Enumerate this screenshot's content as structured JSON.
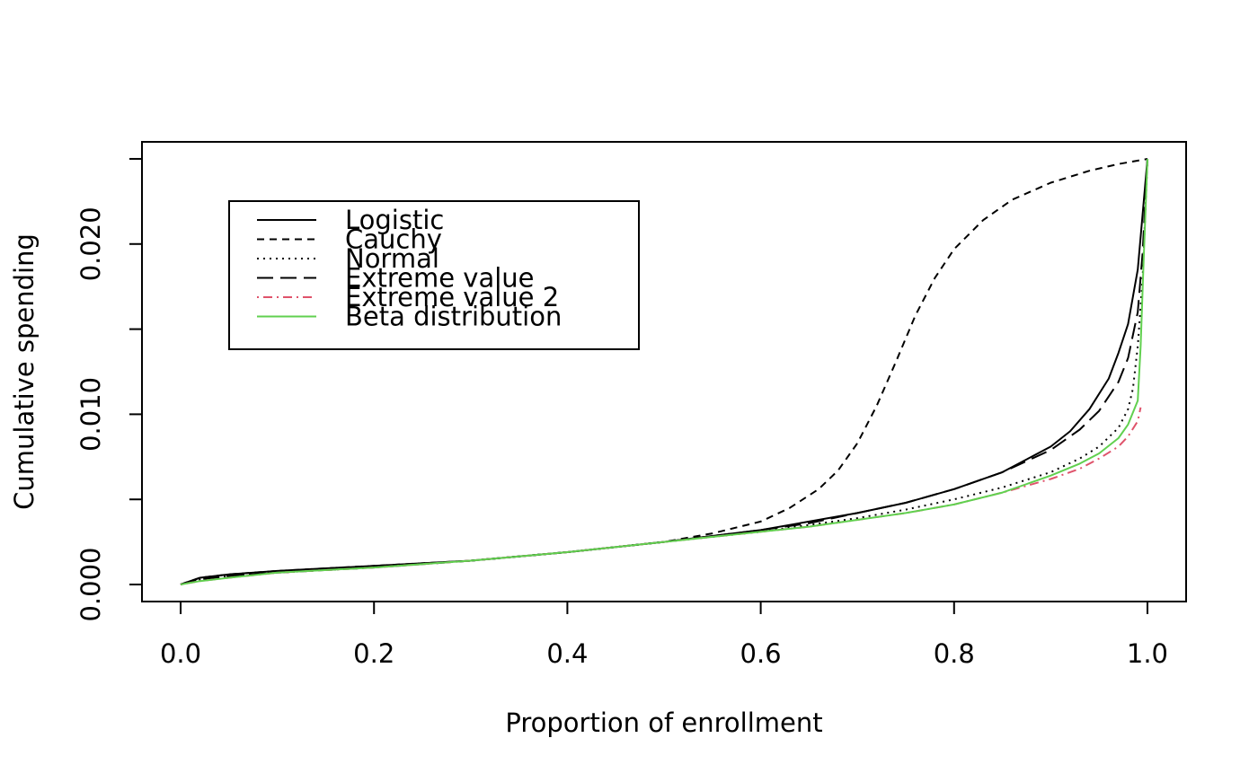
{
  "chart_data": {
    "type": "line",
    "title": "",
    "xlabel": "Proportion of enrollment",
    "ylabel": "Cumulative spending",
    "xlim": [
      -0.04,
      1.04
    ],
    "ylim": [
      -0.001,
      0.026
    ],
    "x_ticks": [
      0.0,
      0.2,
      0.4,
      0.6,
      0.8,
      1.0
    ],
    "x_tick_labels": [
      "0.0",
      "0.2",
      "0.4",
      "0.6",
      "0.8",
      "1.0"
    ],
    "y_ticks": [
      0.0,
      0.005,
      0.01,
      0.015,
      0.02,
      0.025
    ],
    "y_tick_labels": [
      "0.000",
      "",
      "0.010",
      "",
      "0.020",
      ""
    ],
    "grid": false,
    "legend_position": "top-left",
    "series": [
      {
        "name": "Logistic",
        "color": "#000000",
        "dash": "solid",
        "x": [
          0,
          0.02,
          0.05,
          0.1,
          0.2,
          0.3,
          0.4,
          0.5,
          0.6,
          0.65,
          0.7,
          0.75,
          0.8,
          0.85,
          0.9,
          0.92,
          0.94,
          0.96,
          0.97,
          0.98,
          0.99,
          1.0
        ],
        "y": [
          0,
          0.0004,
          0.0006,
          0.0008,
          0.0011,
          0.0014,
          0.0019,
          0.0025,
          0.0032,
          0.0037,
          0.0042,
          0.0048,
          0.0056,
          0.0066,
          0.0081,
          0.009,
          0.0103,
          0.0121,
          0.0136,
          0.0153,
          0.0185,
          0.025
        ]
      },
      {
        "name": "Cauchy",
        "color": "#000000",
        "dash": "short",
        "x": [
          0,
          0.02,
          0.05,
          0.1,
          0.2,
          0.3,
          0.4,
          0.5,
          0.55,
          0.6,
          0.63,
          0.66,
          0.68,
          0.7,
          0.72,
          0.74,
          0.76,
          0.78,
          0.8,
          0.83,
          0.86,
          0.9,
          0.94,
          0.97,
          1.0
        ],
        "y": [
          0,
          0.0004,
          0.0006,
          0.0008,
          0.0011,
          0.0014,
          0.0019,
          0.0025,
          0.003,
          0.0037,
          0.0045,
          0.0056,
          0.0067,
          0.0083,
          0.0105,
          0.0131,
          0.0158,
          0.018,
          0.0197,
          0.0214,
          0.0226,
          0.0236,
          0.0243,
          0.0247,
          0.025
        ]
      },
      {
        "name": "Normal",
        "color": "#000000",
        "dash": "dot",
        "x": [
          0,
          0.02,
          0.05,
          0.1,
          0.2,
          0.3,
          0.4,
          0.5,
          0.6,
          0.65,
          0.7,
          0.75,
          0.8,
          0.85,
          0.9,
          0.93,
          0.95,
          0.97,
          0.98,
          0.985,
          0.99,
          0.995,
          1.0
        ],
        "y": [
          0,
          0.0003,
          0.0005,
          0.0007,
          0.001,
          0.0014,
          0.0019,
          0.0025,
          0.0031,
          0.0035,
          0.0039,
          0.0044,
          0.005,
          0.0057,
          0.0066,
          0.0074,
          0.0081,
          0.0092,
          0.0103,
          0.0115,
          0.014,
          0.018,
          0.025
        ]
      },
      {
        "name": "Extreme value",
        "color": "#000000",
        "dash": "long",
        "x": [
          0,
          0.02,
          0.05,
          0.1,
          0.2,
          0.3,
          0.4,
          0.5,
          0.6,
          0.65,
          0.7,
          0.75,
          0.8,
          0.85,
          0.9,
          0.93,
          0.95,
          0.97,
          0.98,
          0.99,
          0.995,
          1.0
        ],
        "y": [
          0,
          0.0003,
          0.0005,
          0.0007,
          0.001,
          0.0014,
          0.0019,
          0.0025,
          0.0032,
          0.0036,
          0.0042,
          0.0048,
          0.0056,
          0.0066,
          0.0079,
          0.0091,
          0.0102,
          0.0119,
          0.0133,
          0.016,
          0.0195,
          0.025
        ]
      },
      {
        "name": "Extreme value 2",
        "color": "#DF536B",
        "dash": "dotdash",
        "x": [
          0,
          0.02,
          0.05,
          0.1,
          0.2,
          0.3,
          0.4,
          0.5,
          0.6,
          0.65,
          0.7,
          0.75,
          0.8,
          0.85,
          0.9,
          0.93,
          0.95,
          0.97,
          0.98,
          0.99,
          0.993
        ],
        "y": [
          0,
          0.0002,
          0.0004,
          0.0007,
          0.001,
          0.0014,
          0.0019,
          0.0025,
          0.0031,
          0.0034,
          0.0038,
          0.0042,
          0.0047,
          0.0054,
          0.0062,
          0.0068,
          0.0074,
          0.0081,
          0.0087,
          0.0096,
          0.0104
        ]
      },
      {
        "name": "Beta distribution",
        "color": "#61D04F",
        "dash": "solid",
        "x": [
          0,
          0.02,
          0.05,
          0.1,
          0.2,
          0.3,
          0.4,
          0.5,
          0.6,
          0.65,
          0.7,
          0.75,
          0.8,
          0.85,
          0.9,
          0.93,
          0.95,
          0.97,
          0.98,
          0.99,
          0.993,
          0.996,
          1.0
        ],
        "y": [
          0,
          0.0002,
          0.0004,
          0.0007,
          0.001,
          0.0014,
          0.0019,
          0.0025,
          0.0031,
          0.0034,
          0.0038,
          0.0042,
          0.0047,
          0.0054,
          0.0064,
          0.0071,
          0.0077,
          0.0086,
          0.0094,
          0.0108,
          0.014,
          0.019,
          0.025
        ]
      }
    ]
  }
}
